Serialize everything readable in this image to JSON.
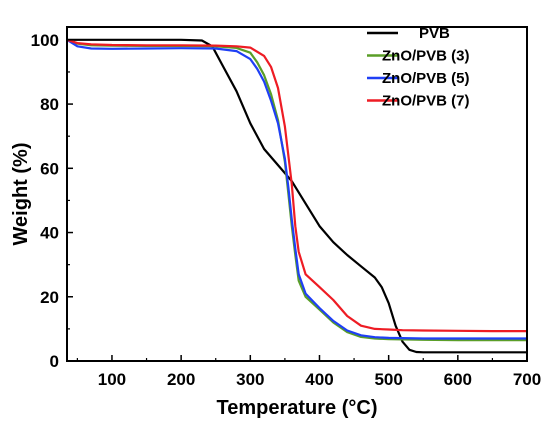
{
  "chart_data": {
    "type": "line",
    "xlabel": "Temperature (°C)",
    "ylabel": "Weight (%)",
    "xlim": [
      35,
      700
    ],
    "ylim": [
      0,
      104
    ],
    "xticks": [
      100,
      200,
      300,
      400,
      500,
      600,
      700
    ],
    "yticks": [
      0,
      20,
      40,
      60,
      80,
      100
    ],
    "grid": false,
    "legend_position": "top-right",
    "series": [
      {
        "name": "PVB",
        "color": "#000000",
        "x": [
          35,
          100,
          150,
          200,
          230,
          245,
          260,
          280,
          300,
          320,
          340,
          360,
          380,
          400,
          420,
          440,
          460,
          480,
          490,
          500,
          510,
          520,
          530,
          540,
          550,
          600,
          650,
          700
        ],
        "y": [
          100,
          100,
          100,
          100,
          99.8,
          98,
          92,
          84,
          74,
          66,
          61,
          56,
          49,
          42,
          37,
          33,
          29.5,
          26,
          23,
          18,
          11,
          6,
          3.5,
          2.8,
          2.7,
          2.7,
          2.7,
          2.7
        ]
      },
      {
        "name": "ZnO/PVB (3)",
        "color": "#5a9e27",
        "x": [
          35,
          50,
          70,
          100,
          150,
          200,
          250,
          280,
          300,
          310,
          320,
          330,
          340,
          350,
          355,
          360,
          365,
          370,
          380,
          400,
          420,
          440,
          460,
          480,
          500,
          550,
          600,
          650,
          700
        ],
        "y": [
          100,
          98.8,
          98.3,
          98.2,
          98.1,
          98.1,
          98,
          97.5,
          96,
          93,
          89,
          83,
          75,
          62,
          52,
          42,
          33,
          25,
          20,
          16,
          12,
          9,
          7.5,
          7,
          6.8,
          6.6,
          6.5,
          6.5,
          6.5
        ]
      },
      {
        "name": "ZnO/PVB (5)",
        "color": "#1f3ff5",
        "x": [
          35,
          50,
          70,
          100,
          150,
          200,
          250,
          280,
          300,
          310,
          320,
          330,
          340,
          350,
          355,
          360,
          365,
          370,
          380,
          400,
          420,
          440,
          460,
          480,
          500,
          550,
          600,
          650,
          700
        ],
        "y": [
          100,
          98,
          97.3,
          97.2,
          97.3,
          97.4,
          97.3,
          96.5,
          94,
          91,
          87,
          81,
          74,
          63,
          54,
          44,
          35,
          27,
          21,
          16.5,
          12.5,
          9.5,
          8,
          7.4,
          7.2,
          7,
          7,
          7,
          7
        ]
      },
      {
        "name": "ZnO/PVB (7)",
        "color": "#ee1c24",
        "x": [
          35,
          50,
          70,
          100,
          150,
          200,
          250,
          280,
          300,
          320,
          330,
          340,
          350,
          360,
          365,
          370,
          380,
          400,
          420,
          440,
          460,
          480,
          500,
          520,
          550,
          600,
          650,
          700
        ],
        "y": [
          100,
          99,
          98.6,
          98.4,
          98.3,
          98.3,
          98.2,
          98,
          97.6,
          95,
          91.5,
          85,
          73,
          55,
          42,
          34,
          27,
          23,
          19,
          14,
          11,
          10,
          9.8,
          9.6,
          9.5,
          9.4,
          9.3,
          9.3
        ]
      }
    ]
  }
}
